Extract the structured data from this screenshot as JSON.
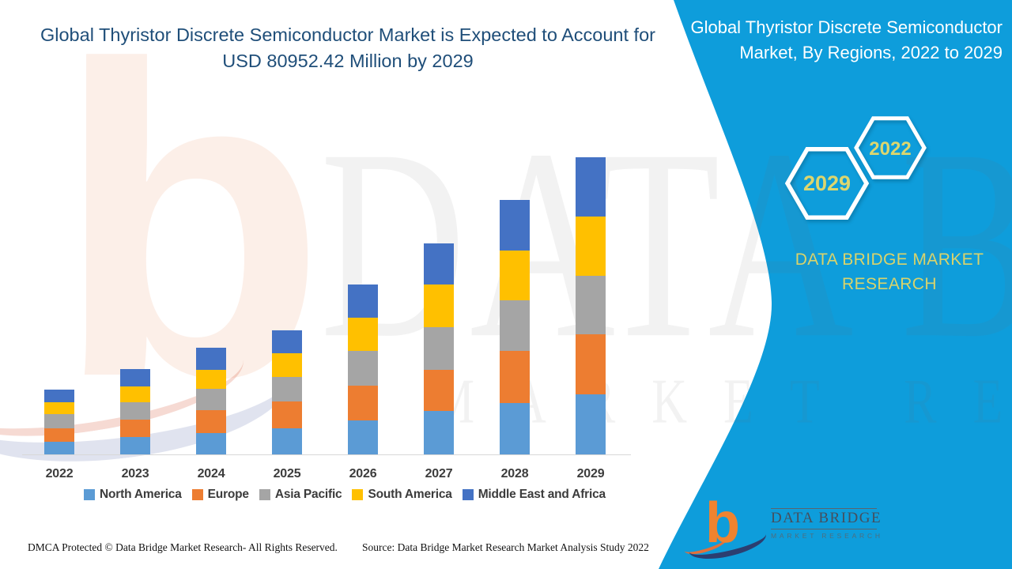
{
  "header": {
    "title_line1": "Global Thyristor Discrete Semiconductor Market is Expected to Account for",
    "title_line2": "USD 80952.42 Million by 2029"
  },
  "side_panel": {
    "title": "Global Thyristor Discrete Semiconductor Market, By Regions, 2022 to 2029",
    "hexagons": [
      {
        "label": "2029"
      },
      {
        "label": "2022"
      }
    ],
    "brand_text": "DATA BRIDGE MARKET RESEARCH",
    "bg_color": "#0E9DDB",
    "accent_text_color": "#DCD66E",
    "title_text_color": "#FFFFFF"
  },
  "chart_data": {
    "type": "bar",
    "stacked": true,
    "title": "Global Thyristor Discrete Semiconductor Market, By Regions, 2022 to 2029",
    "unit": "USD Million",
    "categories": [
      "2022",
      "2023",
      "2024",
      "2025",
      "2026",
      "2027",
      "2028",
      "2029"
    ],
    "series": [
      {
        "name": "North America",
        "color": "#5B9BD5",
        "values": [
          3380,
          4810,
          5880,
          7110,
          9330,
          11850,
          13940,
          16310
        ]
      },
      {
        "name": "Europe",
        "color": "#ED7D31",
        "values": [
          3810,
          4680,
          6250,
          7390,
          9480,
          11270,
          14220,
          16530
        ]
      },
      {
        "name": "Asia Pacific",
        "color": "#A5A5A5",
        "values": [
          3730,
          4680,
          5750,
          6620,
          9330,
          11640,
          13790,
          15800
        ]
      },
      {
        "name": "South America",
        "color": "#FFC000",
        "values": [
          3230,
          4460,
          5240,
          6400,
          9200,
          11570,
          13730,
          16160
        ]
      },
      {
        "name": "Middle East and Africa",
        "color": "#4472C4",
        "values": [
          3450,
          4680,
          5880,
          6400,
          8990,
          11270,
          13580,
          16152.42
        ]
      }
    ],
    "totals_note": "2029 total = 80952.42",
    "ylim": [
      0,
      81000
    ],
    "grid": false,
    "legend_position": "bottom",
    "title_color": "#1F4E79"
  },
  "watermark": {
    "glyph": "b",
    "big_text": "DATA BRIDGE",
    "sub_text": "MARKET RESEARCH"
  },
  "footer": {
    "left": "DMCA Protected © Data Bridge Market Research- All Rights Reserved.",
    "right": "Source: Data Bridge Market Research Market Analysis Study 2022"
  },
  "logo": {
    "glyph": "b",
    "name": "DATA BRIDGE",
    "subtext": "MARKET RESEARCH"
  }
}
